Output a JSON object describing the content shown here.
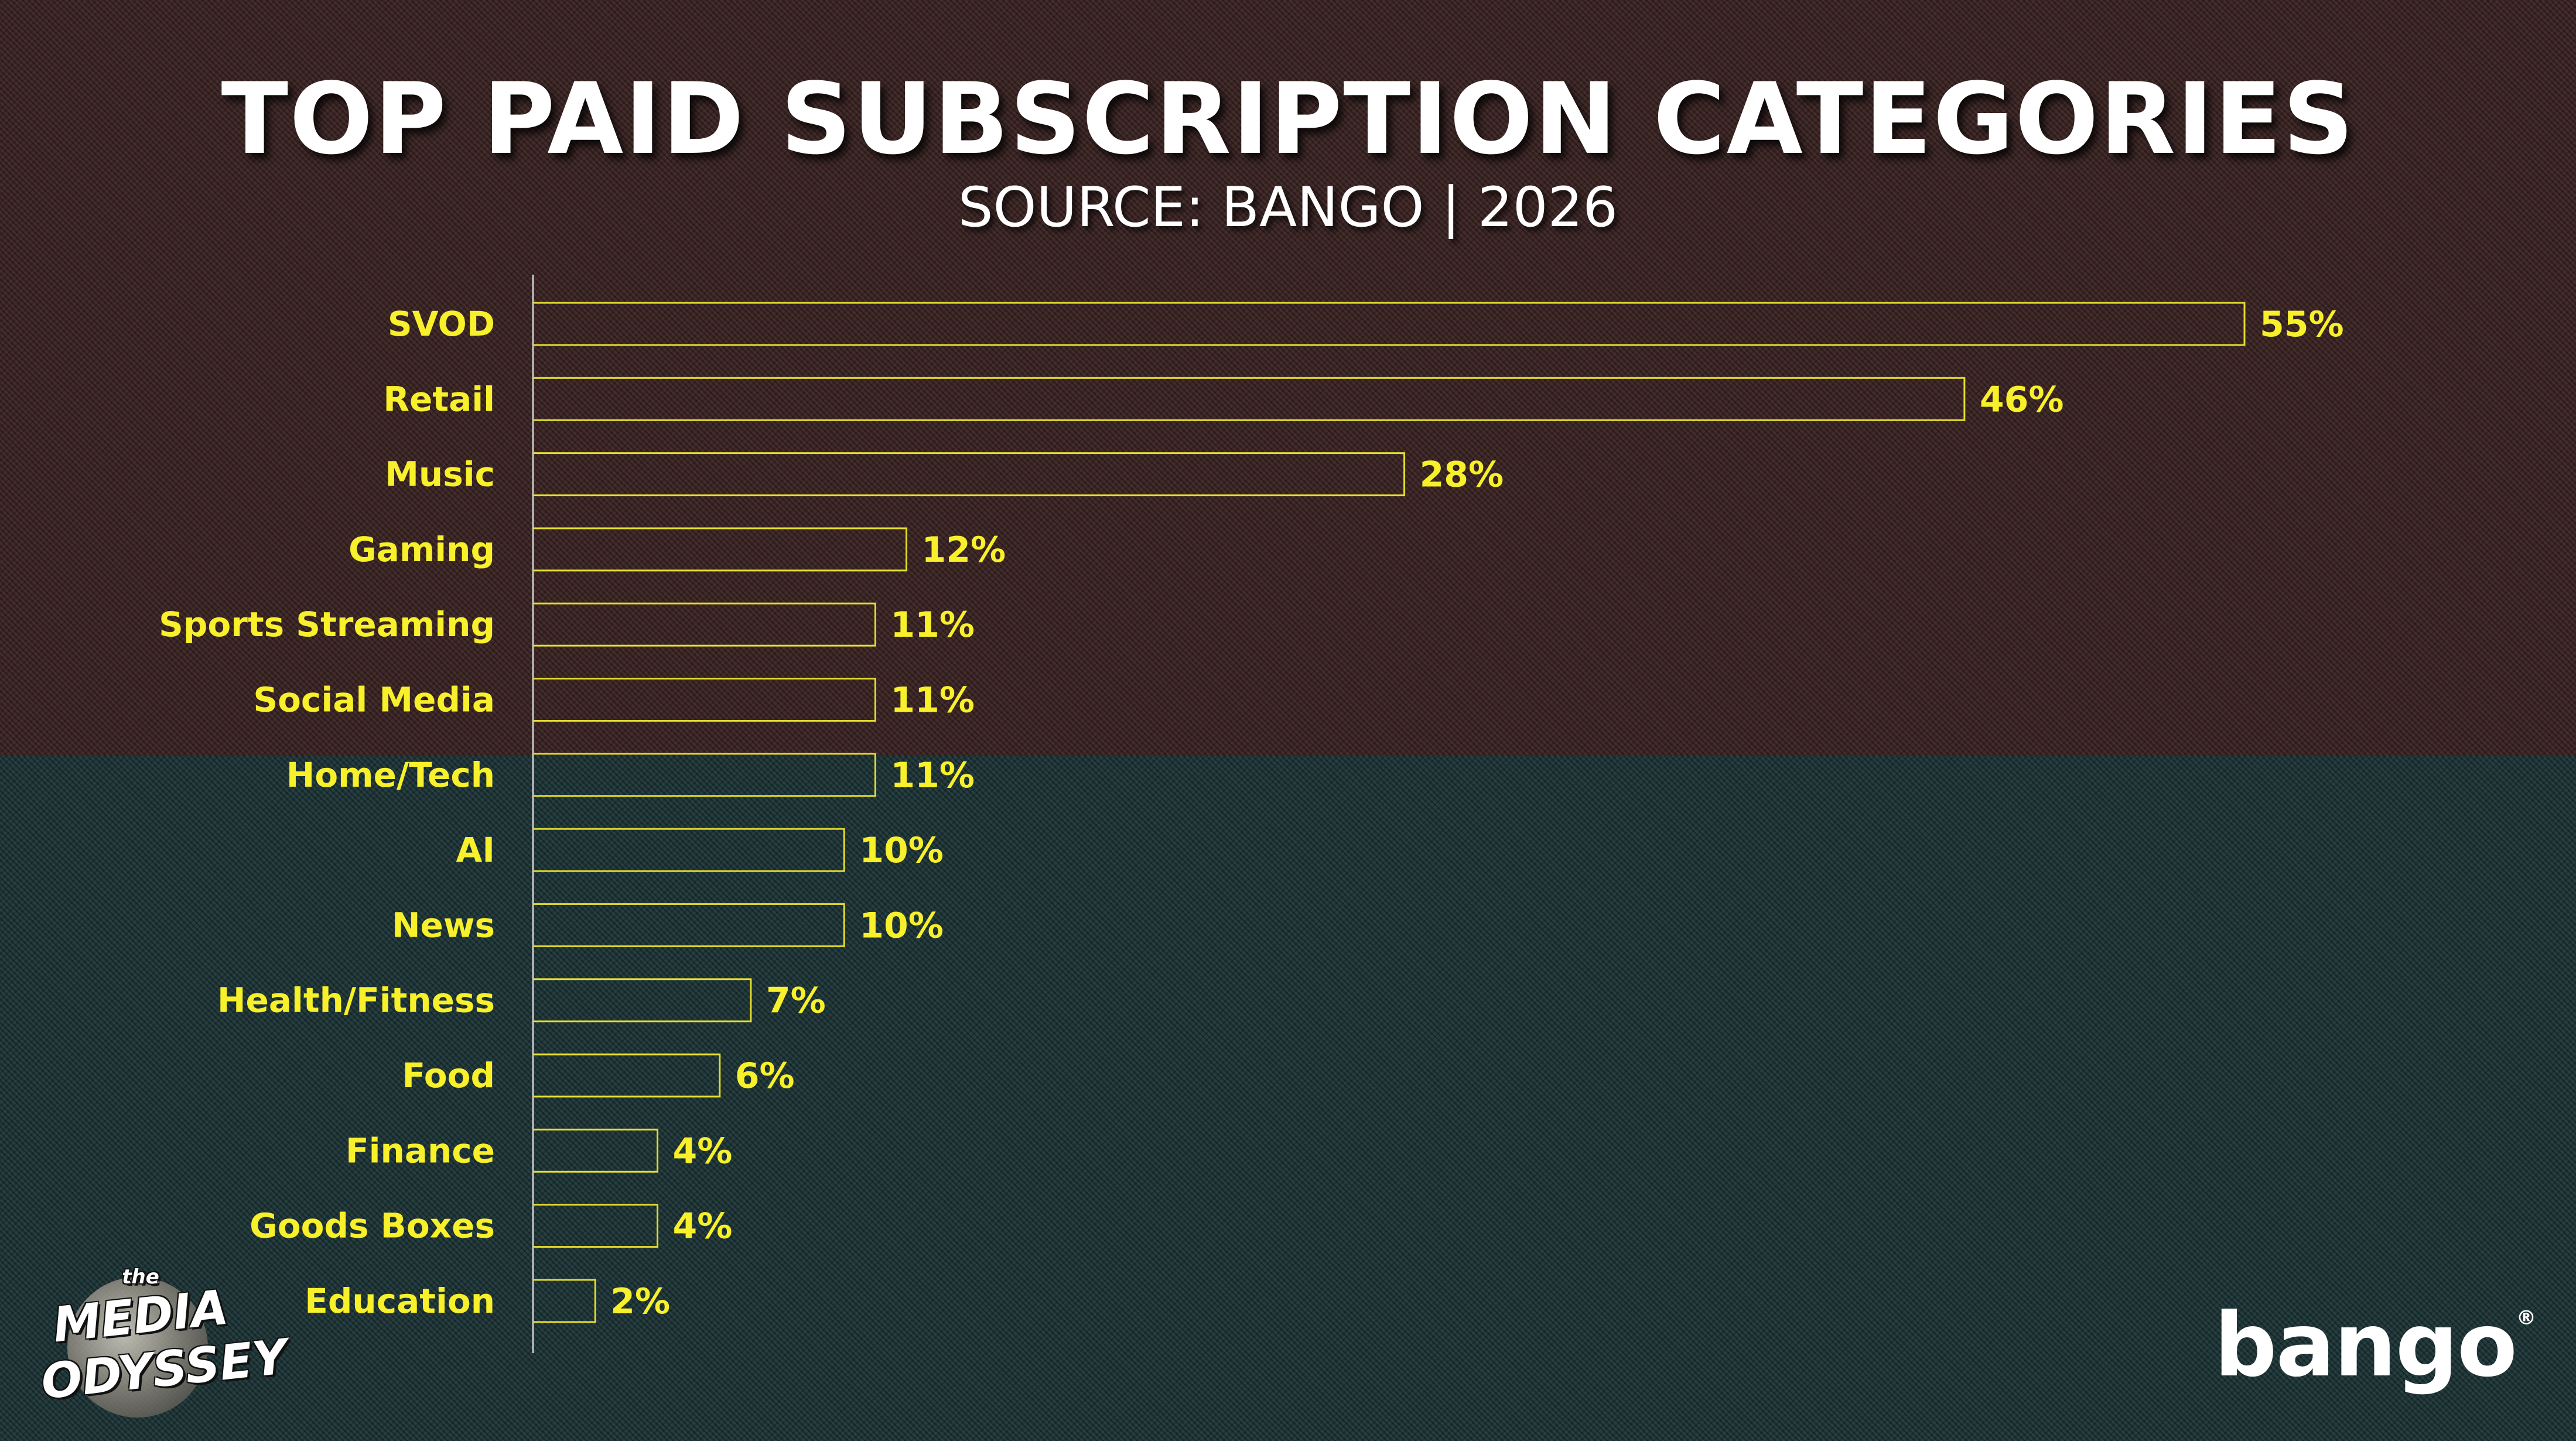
{
  "header": {
    "title": "TOP PAID SUBSCRIPTION CATEGORIES",
    "subtitle": "SOURCE: BANGO | 2026"
  },
  "branding": {
    "left_logo": {
      "small": "the",
      "line1": "MEDIA",
      "line2": "ODYSSEY"
    },
    "right_logo": {
      "text": "bango",
      "mark": "®"
    }
  },
  "colors": {
    "bar_outline": "#e4dd2e",
    "label_text": "#f7f02a",
    "axis_line": "#c8c8c8"
  },
  "chart_data": {
    "type": "bar",
    "orientation": "horizontal",
    "title": "TOP PAID SUBSCRIPTION CATEGORIES",
    "subtitle": "SOURCE: BANGO | 2026",
    "xlabel": "",
    "ylabel": "",
    "xlim": [
      0,
      55
    ],
    "grid": false,
    "legend": "none",
    "value_suffix": "%",
    "categories": [
      "SVOD",
      "Retail",
      "Music",
      "Gaming",
      "Sports Streaming",
      "Social Media",
      "Home/Tech",
      "AI",
      "News",
      "Health/Fitness",
      "Food",
      "Finance",
      "Goods Boxes",
      "Education"
    ],
    "values": [
      55,
      46,
      28,
      12,
      11,
      11,
      11,
      10,
      10,
      7,
      6,
      4,
      4,
      2
    ],
    "value_labels": [
      "55%",
      "46%",
      "28%",
      "12%",
      "11%",
      "11%",
      "11%",
      "10%",
      "10%",
      "7%",
      "6%",
      "4%",
      "4%",
      "2%"
    ]
  }
}
